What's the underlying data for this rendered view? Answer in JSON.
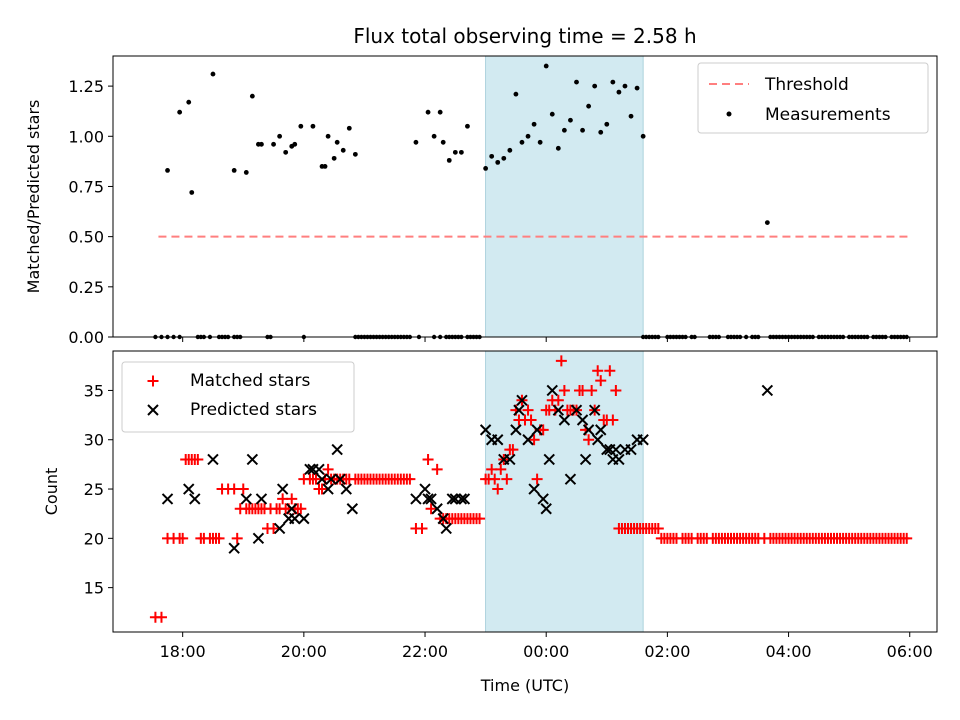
{
  "chart_data": [
    {
      "type": "scatter",
      "panel": "top",
      "title": "Flux total observing time = 2.58 h",
      "ylabel": "Matched/Predicted stars",
      "xlabel": "",
      "xlim": [
        16.85,
        30.45
      ],
      "ylim": [
        0,
        1.4
      ],
      "xticks": [
        18,
        20,
        22,
        24,
        26,
        28,
        30
      ],
      "yticks": [
        0.0,
        0.25,
        0.5,
        0.75,
        1.0,
        1.25
      ],
      "ytick_labels": [
        "0.00",
        "0.25",
        "0.50",
        "0.75",
        "1.00",
        "1.25"
      ],
      "highlight_span": [
        23.0,
        25.6
      ],
      "highlight_color": "#add8e6",
      "legend_position": "upper right",
      "series": [
        {
          "name": "Threshold",
          "kind": "dashed-line",
          "color": "#ff7f7f",
          "x": [
            17.6,
            30.0
          ],
          "y": [
            0.5,
            0.5
          ]
        },
        {
          "name": "Measurements",
          "kind": "dots",
          "color": "#000000",
          "x": [
            17.95,
            18.1,
            18.15,
            18.5,
            18.85,
            19.05,
            19.15,
            19.25,
            19.3,
            19.6,
            19.7,
            19.8,
            19.85,
            19.95,
            20.15,
            20.3,
            20.35,
            20.4,
            20.5,
            20.55,
            20.65,
            20.75,
            20.85,
            21.85,
            22.05,
            22.15,
            22.25,
            22.3,
            22.4,
            22.5,
            22.6,
            22.7,
            23.0,
            23.1,
            23.2,
            23.3,
            23.4,
            23.5,
            23.6,
            23.7,
            23.8,
            23.9,
            24.0,
            24.1,
            24.2,
            24.3,
            24.4,
            24.5,
            24.6,
            24.7,
            24.8,
            24.9,
            25.0,
            25.1,
            25.2,
            25.3,
            25.4,
            25.5,
            25.6,
            17.75,
            19.5,
            27.65
          ],
          "y": [
            1.12,
            1.17,
            0.72,
            1.31,
            0.83,
            0.82,
            1.2,
            0.96,
            0.96,
            1.0,
            0.92,
            0.95,
            0.96,
            1.05,
            1.05,
            0.85,
            0.85,
            1.0,
            0.89,
            0.97,
            0.93,
            1.04,
            0.91,
            0.97,
            1.12,
            1.0,
            1.12,
            0.97,
            0.88,
            0.92,
            0.92,
            1.05,
            0.84,
            0.9,
            0.87,
            0.89,
            0.93,
            1.21,
            0.97,
            1.0,
            1.06,
            0.97,
            1.35,
            1.11,
            0.94,
            1.03,
            1.08,
            1.27,
            1.03,
            1.15,
            1.25,
            1.02,
            1.06,
            1.27,
            1.22,
            1.25,
            1.1,
            1.24,
            1.0,
            0.83,
            0.96,
            0.57
          ],
          "zero_x": [
            17.55,
            17.65,
            17.75,
            17.85,
            17.95,
            18.25,
            18.3,
            18.35,
            18.45,
            18.6,
            18.65,
            18.7,
            18.75,
            18.85,
            18.9,
            18.95,
            19.4,
            19.45,
            20.0,
            20.85,
            20.9,
            20.95,
            21.0,
            21.05,
            21.1,
            21.15,
            21.2,
            21.25,
            21.3,
            21.35,
            21.4,
            21.45,
            21.5,
            21.55,
            21.6,
            21.65,
            21.7,
            21.75,
            21.9,
            22.15,
            22.25,
            22.35,
            22.4,
            22.45,
            22.5,
            22.55,
            22.6,
            22.7,
            22.75,
            22.8,
            22.85,
            22.9,
            25.6,
            25.65,
            25.7,
            25.75,
            25.8,
            25.85,
            26.0,
            26.05,
            26.1,
            26.15,
            26.2,
            26.25,
            26.3,
            26.4,
            26.45,
            26.7,
            26.75,
            26.8,
            26.85,
            27.0,
            27.05,
            27.1,
            27.15,
            27.2,
            27.3,
            27.4,
            27.45,
            27.5,
            27.7,
            27.75,
            27.8,
            27.85,
            27.9,
            27.95,
            28.0,
            28.05,
            28.1,
            28.15,
            28.2,
            28.25,
            28.3,
            28.35,
            28.4,
            28.5,
            28.55,
            28.6,
            28.65,
            28.7,
            28.75,
            28.8,
            28.85,
            28.9,
            29.0,
            29.05,
            29.1,
            29.15,
            29.2,
            29.25,
            29.3,
            29.4,
            29.45,
            29.5,
            29.55,
            29.6,
            29.7,
            29.75,
            29.8,
            29.85,
            29.9,
            29.95
          ]
        }
      ]
    },
    {
      "type": "scatter",
      "panel": "bottom",
      "title": "",
      "xlabel": "Time (UTC)",
      "ylabel": "Count",
      "xlim": [
        16.85,
        30.45
      ],
      "ylim": [
        10.5,
        39
      ],
      "xticks": [
        18,
        20,
        22,
        24,
        26,
        28,
        30
      ],
      "xtick_labels": [
        "18:00",
        "20:00",
        "22:00",
        "00:00",
        "02:00",
        "04:00",
        "06:00"
      ],
      "yticks": [
        15,
        20,
        25,
        30,
        35
      ],
      "ytick_labels": [
        "15",
        "20",
        "25",
        "30",
        "35"
      ],
      "highlight_span": [
        23.0,
        25.6
      ],
      "highlight_color": "#add8e6",
      "legend_position": "upper left",
      "series": [
        {
          "name": "Matched stars",
          "marker": "+",
          "color": "#ff0000",
          "x": [
            17.55,
            17.65,
            17.75,
            17.85,
            17.95,
            18.0,
            18.05,
            18.1,
            18.15,
            18.2,
            18.25,
            18.3,
            18.35,
            18.45,
            18.5,
            18.55,
            18.6,
            18.65,
            18.75,
            18.85,
            18.9,
            18.95,
            19.0,
            19.05,
            19.1,
            19.15,
            19.2,
            19.25,
            19.3,
            19.35,
            19.4,
            19.45,
            19.5,
            19.55,
            19.6,
            19.65,
            19.7,
            19.75,
            19.8,
            19.85,
            19.9,
            19.95,
            20.0,
            20.1,
            20.15,
            20.2,
            20.25,
            20.3,
            20.35,
            20.4,
            20.45,
            20.5,
            20.55,
            20.6,
            20.65,
            20.7,
            20.75,
            20.85,
            20.9,
            20.95,
            21.0,
            21.05,
            21.1,
            21.15,
            21.2,
            21.25,
            21.3,
            21.35,
            21.4,
            21.45,
            21.5,
            21.55,
            21.6,
            21.65,
            21.7,
            21.75,
            21.85,
            21.95,
            22.05,
            22.1,
            22.2,
            22.25,
            22.3,
            22.35,
            22.4,
            22.45,
            22.5,
            22.55,
            22.6,
            22.65,
            22.7,
            22.75,
            22.8,
            22.85,
            22.9,
            23.0,
            23.05,
            23.1,
            23.15,
            23.2,
            23.25,
            23.3,
            23.35,
            23.4,
            23.45,
            23.5,
            23.55,
            23.6,
            23.65,
            23.7,
            23.75,
            23.8,
            23.85,
            23.9,
            23.95,
            24.0,
            24.05,
            24.1,
            24.15,
            24.2,
            24.25,
            24.3,
            24.35,
            24.4,
            24.45,
            24.5,
            24.55,
            24.6,
            24.65,
            24.7,
            24.75,
            24.8,
            24.85,
            24.9,
            24.95,
            25.0,
            25.05,
            25.1,
            25.15,
            25.2,
            25.25,
            25.3,
            25.35,
            25.4,
            25.45,
            25.5,
            25.55,
            25.6,
            25.65,
            25.7,
            25.75,
            25.8,
            25.85,
            25.9,
            25.95,
            26.0,
            26.05,
            26.1,
            26.15,
            26.25,
            26.3,
            26.35,
            26.4,
            26.5,
            26.55,
            26.6,
            26.65,
            26.75,
            26.8,
            26.85,
            26.9,
            26.95,
            27.0,
            27.05,
            27.1,
            27.15,
            27.2,
            27.25,
            27.3,
            27.35,
            27.4,
            27.45,
            27.5,
            27.6,
            27.7,
            27.75,
            27.8,
            27.85,
            27.9,
            27.95,
            28.0,
            28.05,
            28.1,
            28.15,
            28.2,
            28.25,
            28.3,
            28.35,
            28.4,
            28.45,
            28.5,
            28.55,
            28.6,
            28.65,
            28.7,
            28.75,
            28.8,
            28.85,
            28.9,
            28.95,
            29.0,
            29.05,
            29.1,
            29.15,
            29.2,
            29.25,
            29.3,
            29.35,
            29.4,
            29.45,
            29.5,
            29.55,
            29.6,
            29.65,
            29.7,
            29.75,
            29.8,
            29.85,
            29.9,
            29.95
          ],
          "y": [
            12,
            12,
            20,
            20,
            20,
            20,
            28,
            28,
            28,
            28,
            28,
            20,
            20,
            20,
            20,
            20,
            20,
            25,
            25,
            25,
            20,
            23,
            25,
            23,
            23,
            23,
            23,
            23,
            23,
            23,
            21,
            23,
            21,
            23,
            23,
            24,
            23,
            23,
            24,
            23,
            23,
            23,
            26,
            26,
            26,
            26,
            25,
            25,
            26,
            27,
            26,
            26,
            26,
            26,
            26,
            26,
            26,
            26,
            26,
            26,
            26,
            26,
            26,
            26,
            26,
            26,
            26,
            26,
            26,
            26,
            26,
            26,
            26,
            26,
            26,
            26,
            21,
            21,
            28,
            23,
            27,
            22,
            22,
            22,
            22,
            22,
            22,
            22,
            22,
            22,
            22,
            22,
            22,
            22,
            22,
            26,
            26,
            27,
            26,
            25,
            27,
            28,
            26,
            29,
            29,
            33,
            32,
            34,
            32,
            33,
            32,
            30,
            26,
            31,
            31,
            33,
            33,
            34,
            33,
            34,
            38,
            35,
            33,
            33,
            33,
            33,
            35,
            35,
            31,
            30,
            35,
            33,
            37,
            36,
            32,
            32,
            37,
            32,
            35,
            21,
            21,
            21,
            21,
            21,
            21,
            21,
            21,
            21,
            21,
            21,
            21,
            21,
            21,
            20,
            20,
            20,
            20,
            20,
            20,
            20,
            20,
            20,
            20,
            20,
            20,
            20,
            20,
            20,
            20,
            20,
            20,
            20,
            20,
            20,
            20,
            20,
            20,
            20,
            20,
            20,
            20,
            20,
            20,
            20,
            20,
            20,
            20,
            20,
            20,
            20,
            20,
            20,
            20,
            20,
            20,
            20,
            20,
            20,
            20,
            20,
            20,
            20,
            20,
            20,
            20,
            20,
            20,
            20,
            20,
            20,
            20,
            20,
            20,
            20,
            20,
            20,
            20,
            20,
            20,
            20,
            20,
            20,
            20,
            20,
            20,
            20,
            20,
            20,
            20,
            20
          ]
        },
        {
          "name": "Predicted stars",
          "marker": "x",
          "color": "#000000",
          "x": [
            17.75,
            18.1,
            18.2,
            18.5,
            18.85,
            19.05,
            19.15,
            19.25,
            19.3,
            19.6,
            19.65,
            19.75,
            19.8,
            19.85,
            20.0,
            20.1,
            20.15,
            20.25,
            20.3,
            20.4,
            20.45,
            20.55,
            20.6,
            20.7,
            20.8,
            21.85,
            22.0,
            22.05,
            22.1,
            22.2,
            22.3,
            22.35,
            22.45,
            22.5,
            22.6,
            22.65,
            23.0,
            23.1,
            23.2,
            23.3,
            23.4,
            23.5,
            23.55,
            23.6,
            23.7,
            23.8,
            23.85,
            23.95,
            24.0,
            24.05,
            24.1,
            24.2,
            24.3,
            24.4,
            24.5,
            24.6,
            24.65,
            24.7,
            24.8,
            24.85,
            24.9,
            25.0,
            25.05,
            25.1,
            25.15,
            25.2,
            25.3,
            25.4,
            25.5,
            25.6,
            27.65
          ],
          "y": [
            24,
            25,
            24,
            28,
            19,
            24,
            28,
            20,
            24,
            21,
            25,
            22,
            23,
            22,
            22,
            27,
            27,
            27,
            26,
            25,
            26,
            29,
            26,
            25,
            23,
            24,
            25,
            24,
            24,
            23,
            22,
            21,
            24,
            24,
            24,
            24,
            31,
            30,
            30,
            28,
            28,
            31,
            33,
            34,
            30,
            25,
            31,
            24,
            23,
            28,
            35,
            33,
            32,
            26,
            33,
            32,
            28,
            31,
            33,
            30,
            31,
            29,
            29,
            28,
            29,
            28,
            29,
            29,
            30,
            30,
            35
          ]
        }
      ]
    }
  ]
}
